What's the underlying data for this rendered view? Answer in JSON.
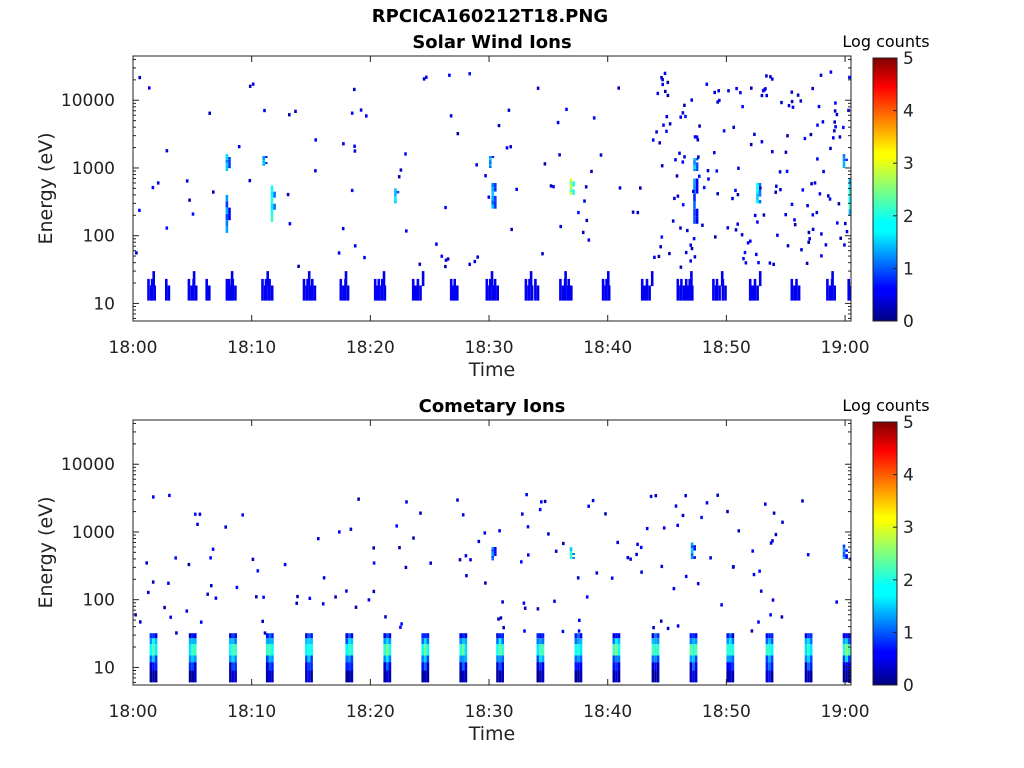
{
  "figure": {
    "title": "RPCICA160212T18.PNG"
  },
  "chart_data": [
    {
      "type": "heatmap",
      "title": "Solar Wind Ions",
      "xlabel": "Time",
      "ylabel": "Energy (eV)",
      "x_ticks": [
        "18:00",
        "18:10",
        "18:20",
        "18:30",
        "18:40",
        "18:50",
        "19:00"
      ],
      "x_range_minutes": [
        0,
        60.5
      ],
      "y_scale": "log",
      "y_ticks": [
        10,
        100,
        1000,
        10000
      ],
      "y_tick_labels": [
        "10",
        "100",
        "1000",
        "10000"
      ],
      "y_range": [
        5.5,
        45000
      ],
      "colorbar": {
        "label": "Log counts",
        "range": [
          0,
          5
        ],
        "ticks": [
          "0",
          "1",
          "2",
          "3",
          "4",
          "5"
        ],
        "colormap": "jet"
      },
      "low_energy_band": {
        "energy_range": [
          11,
          23
        ],
        "level": 0.6,
        "times_minutes": [
          1.2,
          1.5,
          2.7,
          4.6,
          5.0,
          6.1,
          7.8,
          8.0,
          8.3,
          10.8,
          11.1,
          11.4,
          14.3,
          14.6,
          15.0,
          17.4,
          17.8,
          20.3,
          20.6,
          20.9,
          23.5,
          23.9,
          26.7,
          27.0,
          29.7,
          30.0,
          30.4,
          33.0,
          33.3,
          33.8,
          35.9,
          36.3,
          36.6,
          39.5,
          39.8,
          42.8,
          43.2,
          45.8,
          46.1,
          46.5,
          46.8,
          48.8,
          49.1,
          49.6,
          51.9,
          52.3,
          55.4,
          55.8,
          58.4,
          58.8,
          60.2,
          60.5
        ]
      },
      "mid_energy_clusters": [
        {
          "time_minutes": 7.8,
          "energy_min": 900,
          "energy_max": 1600,
          "level": 1.5
        },
        {
          "time_minutes": 7.8,
          "energy_min": 110,
          "energy_max": 400,
          "level": 1.2
        },
        {
          "time_minutes": 10.9,
          "energy_min": 1100,
          "energy_max": 1500,
          "level": 1.5
        },
        {
          "time_minutes": 11.6,
          "energy_min": 160,
          "energy_max": 550,
          "level": 1.8
        },
        {
          "time_minutes": 22.0,
          "energy_min": 300,
          "energy_max": 500,
          "level": 1.6
        },
        {
          "time_minutes": 30.0,
          "energy_min": 1000,
          "energy_max": 1500,
          "level": 1.4
        },
        {
          "time_minutes": 30.2,
          "energy_min": 250,
          "energy_max": 600,
          "level": 1.5
        },
        {
          "time_minutes": 36.8,
          "energy_min": 400,
          "energy_max": 700,
          "level": 2.6
        },
        {
          "time_minutes": 47.2,
          "energy_min": 900,
          "energy_max": 1400,
          "level": 1.6
        },
        {
          "time_minutes": 47.2,
          "energy_min": 150,
          "energy_max": 700,
          "level": 1.2
        },
        {
          "time_minutes": 52.5,
          "energy_min": 300,
          "energy_max": 600,
          "level": 1.8
        },
        {
          "time_minutes": 59.8,
          "energy_min": 1000,
          "energy_max": 1600,
          "level": 1.4
        },
        {
          "time_minutes": 60.3,
          "energy_min": 200,
          "energy_max": 700,
          "level": 1.8
        }
      ],
      "scattered_counts_level": 0.2
    },
    {
      "type": "heatmap",
      "title": "Cometary Ions",
      "xlabel": "Time",
      "ylabel": "Energy (eV)",
      "x_ticks": [
        "18:00",
        "18:10",
        "18:20",
        "18:30",
        "18:40",
        "18:50",
        "19:00"
      ],
      "x_range_minutes": [
        0,
        60.5
      ],
      "y_scale": "log",
      "y_ticks": [
        10,
        100,
        1000,
        10000
      ],
      "y_tick_labels": [
        "10",
        "100",
        "1000",
        "10000"
      ],
      "y_range": [
        5.5,
        45000
      ],
      "colorbar": {
        "label": "Log counts",
        "range": [
          0,
          5
        ],
        "ticks": [
          "0",
          "1",
          "2",
          "3",
          "4",
          "5"
        ],
        "colormap": "jet"
      },
      "low_energy_band": {
        "energy_range": [
          6,
          32
        ],
        "peak_energy": 18,
        "peak_level": 2.3,
        "times_minutes": [
          1.4,
          4.7,
          8.1,
          11.2,
          14.5,
          17.9,
          21.1,
          24.3,
          27.5,
          30.6,
          34.0,
          37.2,
          40.4,
          43.7,
          46.9,
          50.0,
          53.3,
          56.6,
          59.8
        ]
      },
      "mid_energy_clusters": [
        {
          "time_minutes": 30.2,
          "energy_min": 380,
          "energy_max": 600,
          "level": 1.2
        },
        {
          "time_minutes": 36.8,
          "energy_min": 400,
          "energy_max": 600,
          "level": 1.8
        },
        {
          "time_minutes": 47.0,
          "energy_min": 400,
          "energy_max": 700,
          "level": 1.3
        },
        {
          "time_minutes": 59.8,
          "energy_min": 400,
          "energy_max": 650,
          "level": 1.2
        }
      ],
      "scattered_counts_level": 0.2
    }
  ]
}
